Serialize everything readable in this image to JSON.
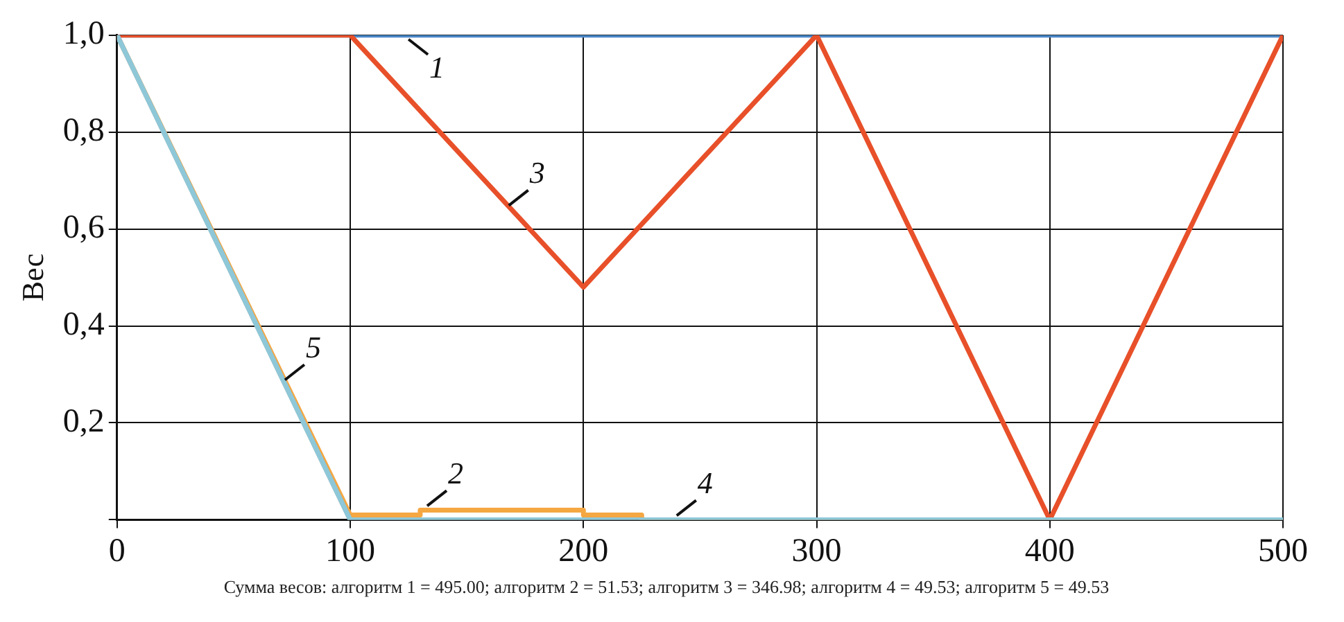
{
  "chart_data": {
    "type": "line",
    "ylabel": "Вес",
    "xlim": [
      0,
      500
    ],
    "xticks": [
      {
        "value": 0,
        "label": "0"
      },
      100,
      200,
      300,
      400,
      500
    ],
    "ylim": [
      0,
      1
    ],
    "yticks": [
      {
        "value": 0,
        "label": null
      },
      {
        "value": 0.2,
        "label": "0,2"
      },
      {
        "value": 0.4,
        "label": "0,4"
      },
      {
        "value": 0.6,
        "label": "0,6"
      },
      {
        "value": 0.8,
        "label": "0,8"
      },
      {
        "value": 1,
        "label": "1,0"
      }
    ],
    "grid": true,
    "legend": false,
    "marker": "none",
    "series": [
      {
        "color": "#4a86c8",
        "x": [
          0,
          500
        ],
        "values": [
          1,
          1
        ]
      },
      {
        "color": "#f5a742",
        "x": [
          0,
          100,
          130,
          130,
          200,
          200,
          225,
          225,
          500
        ],
        "values": [
          1,
          0.01,
          0.01,
          0.02,
          0.02,
          0.01,
          0.01,
          0,
          0
        ]
      },
      {
        "color": "#e8502a",
        "x": [
          0,
          100,
          200,
          300,
          400,
          500
        ],
        "values": [
          1,
          1,
          0.48,
          1,
          0,
          1
        ]
      },
      {
        "color": "#a0a0a0",
        "x": [
          0,
          100,
          500
        ],
        "values": [
          1,
          0,
          0
        ]
      },
      {
        "color": "#8ec8d8",
        "x": [
          0,
          100,
          500
        ],
        "values": [
          1,
          0,
          0
        ]
      }
    ],
    "annotations": [
      {
        "text": "1",
        "x": 125,
        "y": 1
      },
      {
        "text": "2",
        "x": 133,
        "y": 0.02
      },
      {
        "text": "3",
        "x": 168,
        "y": 0.64
      },
      {
        "text": "4",
        "x": 240,
        "y": 0
      },
      {
        "text": "5",
        "x": 72,
        "y": 0.28
      },
      "Сумма весов: алгоритм 1 = 495.00; алгоритм 2 = 51.53;  алгоритм 3 = 346.98; алгоритм 4 = 49.53; алгоритм 5 = 49.53"
    ]
  }
}
